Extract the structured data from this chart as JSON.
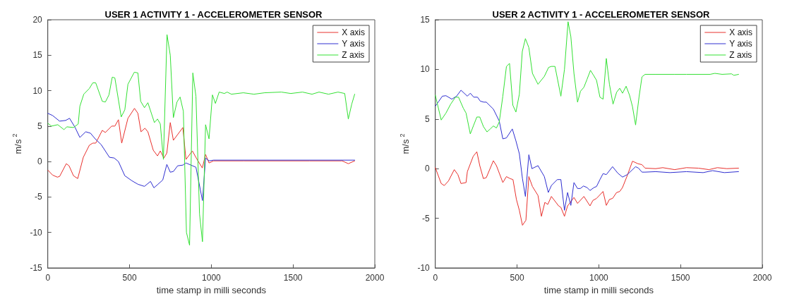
{
  "chart_data": [
    {
      "type": "line",
      "title": "USER 1 ACTIVITY 1 - ACCELEROMETER SENSOR",
      "xlabel": "time stamp in milli seconds",
      "ylabel": "m/s$^{2}$",
      "xlim": [
        0,
        2000
      ],
      "xticks": [
        0,
        500,
        1000,
        1500,
        2000
      ],
      "ylim": [
        -15,
        20
      ],
      "yticks": [
        -15,
        -10,
        -5,
        0,
        5,
        10,
        15,
        20
      ],
      "grid": false,
      "legend": "top right",
      "marker": "none",
      "line_style": "solid",
      "series": [
        {
          "name": "X axis",
          "color": "#e8302c",
          "x": [
            0,
            29,
            58,
            72,
            113,
            130,
            157,
            183,
            217,
            254,
            275,
            293,
            333,
            352,
            391,
            410,
            432,
            452,
            490,
            530,
            551,
            570,
            594,
            612,
            645,
            671,
            688,
            710,
            728,
            749,
            768,
            826,
            845,
            884,
            913,
            945,
            965,
            986,
            1014,
            1200,
            1400,
            1600,
            1800,
            1838,
            1877
          ],
          "values": [
            -1.2,
            -1.9,
            -2.2,
            -2.1,
            -0.3,
            -0.6,
            -2.0,
            -2.4,
            0.6,
            2.3,
            2.6,
            2.6,
            4.4,
            4.1,
            5.0,
            5.0,
            5.9,
            2.6,
            6.1,
            7.5,
            6.8,
            4.2,
            4.7,
            4.2,
            1.6,
            0.8,
            1.5,
            0.5,
            1.2,
            5.5,
            3.0,
            4.8,
            0.3,
            1.5,
            0.3,
            -0.9,
            1.0,
            -0.2,
            0.1,
            0.1,
            0.1,
            0.1,
            0.1,
            -0.3,
            0.1
          ]
        },
        {
          "name": "Y axis",
          "color": "#2e2ed0",
          "x": [
            0,
            29,
            72,
            109,
            133,
            167,
            196,
            232,
            261,
            290,
            326,
            377,
            406,
            432,
            471,
            514,
            551,
            591,
            628,
            649,
            674,
            703,
            728,
            749,
            768,
            794,
            826,
            845,
            906,
            946,
            965,
            986,
            1014,
            1877
          ],
          "values": [
            6.8,
            6.5,
            5.7,
            5.8,
            6.1,
            4.8,
            3.4,
            4.2,
            4.0,
            3.2,
            2.4,
            0.6,
            0.5,
            0.0,
            -2.0,
            -2.7,
            -3.2,
            -3.5,
            -2.8,
            -3.7,
            -3.2,
            -2.6,
            -0.4,
            -1.5,
            -1.4,
            -0.6,
            -0.5,
            -0.2,
            -0.8,
            -5.5,
            0.5,
            0.1,
            0.2,
            0.2
          ]
        },
        {
          "name": "Z axis",
          "color": "#33e033",
          "x": [
            0,
            22,
            61,
            99,
            116,
            157,
            186,
            196,
            220,
            254,
            275,
            293,
            333,
            352,
            374,
            394,
            410,
            449,
            471,
            490,
            529,
            551,
            568,
            591,
            612,
            652,
            671,
            688,
            707,
            729,
            749,
            768,
            790,
            809,
            829,
            848,
            867,
            887,
            906,
            928,
            946,
            965,
            986,
            1007,
            1025,
            1048,
            1080,
            1097,
            1123,
            1196,
            1261,
            1326,
            1428,
            1486,
            1558,
            1616,
            1659,
            1717,
            1775,
            1816,
            1838,
            1859,
            1877
          ],
          "values": [
            5.4,
            5.0,
            5.2,
            4.5,
            4.9,
            4.8,
            5.3,
            7.8,
            9.5,
            10.3,
            11.1,
            11.1,
            8.5,
            8.4,
            9.4,
            11.9,
            11.8,
            6.3,
            7.3,
            10.9,
            12.6,
            12.5,
            8.5,
            7.6,
            8.3,
            5.5,
            6.0,
            5.3,
            0.3,
            17.9,
            15.0,
            6.2,
            8.4,
            9.1,
            7.1,
            -10.0,
            -11.8,
            12.5,
            9.2,
            -7.4,
            -11.3,
            5.2,
            3.2,
            9.4,
            8.2,
            9.8,
            9.6,
            9.8,
            9.5,
            9.7,
            9.5,
            9.7,
            9.8,
            9.6,
            9.8,
            9.5,
            9.8,
            9.5,
            9.8,
            9.6,
            6.0,
            8.1,
            9.5
          ]
        }
      ]
    },
    {
      "type": "line",
      "title": "USER 2 ACTIVITY 1 - ACCELEROMETER SENSOR",
      "xlabel": "time stamp in milli seconds",
      "ylabel": "m/s$^{2}$",
      "xlim": [
        0,
        2000
      ],
      "xticks": [
        0,
        500,
        1000,
        1500,
        2000
      ],
      "ylim": [
        -10,
        15
      ],
      "yticks": [
        -10,
        -5,
        0,
        5,
        10,
        15
      ],
      "grid": false,
      "legend": "top right",
      "marker": "none",
      "line_style": "solid",
      "series": [
        {
          "name": "X axis",
          "color": "#e8302c",
          "x": [
            0,
            36,
            55,
            80,
            116,
            138,
            157,
            188,
            196,
            232,
            254,
            272,
            294,
            312,
            355,
            374,
            413,
            435,
            457,
            475,
            496,
            514,
            533,
            554,
            572,
            594,
            628,
            649,
            670,
            688,
            710,
            754,
            768,
            790,
            809,
            826,
            848,
            870,
            909,
            946,
            964,
            986,
            1026,
            1046,
            1065,
            1084,
            1109,
            1128,
            1145,
            1174,
            1206,
            1239,
            1264,
            1283,
            1348,
            1391,
            1464,
            1536,
            1609,
            1674,
            1725,
            1783,
            1855
          ],
          "values": [
            0.1,
            -1.5,
            -1.7,
            -1.25,
            -0.1,
            -0.6,
            -1.5,
            -1.4,
            -0.3,
            1.25,
            1.7,
            0.3,
            -1.0,
            -0.9,
            0.8,
            0.3,
            -1.4,
            -0.8,
            -1.0,
            -1.1,
            -3.1,
            -4.2,
            -5.7,
            -5.2,
            -0.8,
            -1.8,
            -2.7,
            -4.8,
            -3.4,
            -3.6,
            -2.8,
            -3.75,
            -3.9,
            -4.8,
            -3.75,
            -3.4,
            -2.9,
            -3.5,
            -2.8,
            -3.75,
            -3.2,
            -3.0,
            -2.3,
            -3.7,
            -3.1,
            -3.0,
            -2.4,
            -2.3,
            -1.9,
            -0.7,
            0.75,
            0.5,
            0.4,
            0.05,
            0.0,
            0.1,
            -0.1,
            0.1,
            0.05,
            -0.1,
            0.1,
            0.0,
            0.05
          ]
        },
        {
          "name": "Y axis",
          "color": "#2e2ed0",
          "x": [
            0,
            22,
            43,
            65,
            101,
            130,
            157,
            196,
            214,
            235,
            258,
            275,
            297,
            312,
            355,
            391,
            413,
            435,
            471,
            493,
            514,
            533,
            551,
            572,
            591,
            628,
            667,
            691,
            710,
            746,
            768,
            790,
            809,
            829,
            848,
            870,
            887,
            906,
            928,
            946,
            971,
            986,
            1007,
            1026,
            1046,
            1084,
            1116,
            1145,
            1174,
            1225,
            1243,
            1264,
            1283,
            1348,
            1435,
            1536,
            1638,
            1696,
            1768,
            1855
          ],
          "values": [
            6.3,
            6.8,
            7.3,
            7.35,
            7.0,
            7.3,
            7.9,
            7.3,
            7.6,
            7.2,
            7.2,
            6.8,
            6.7,
            6.7,
            6.0,
            4.8,
            3.0,
            3.1,
            4.0,
            2.8,
            1.5,
            -1.0,
            -2.8,
            1.4,
            0.0,
            0.3,
            -0.8,
            -2.4,
            -1.7,
            -1.1,
            -1.1,
            -4.2,
            -2.4,
            -3.7,
            -1.4,
            -2.0,
            -2.0,
            -1.75,
            -1.9,
            -2.2,
            -1.9,
            -1.8,
            -1.1,
            -0.5,
            -0.6,
            0.2,
            -0.45,
            -0.85,
            -0.6,
            0.2,
            0.05,
            -0.35,
            -0.35,
            -0.3,
            -0.4,
            -0.3,
            -0.4,
            -0.2,
            -0.4,
            -0.3
          ]
        },
        {
          "name": "Z axis",
          "color": "#33e033",
          "x": [
            0,
            36,
            65,
            94,
            123,
            142,
            171,
            188,
            214,
            235,
            254,
            272,
            294,
            316,
            336,
            355,
            374,
            391,
            413,
            435,
            454,
            474,
            493,
            514,
            532,
            551,
            572,
            594,
            628,
            667,
            693,
            710,
            732,
            768,
            790,
            812,
            829,
            848,
            870,
            888,
            909,
            928,
            949,
            968,
            986,
            1007,
            1026,
            1046,
            1065,
            1087,
            1109,
            1128,
            1145,
            1167,
            1188,
            1206,
            1225,
            1246,
            1264,
            1283,
            1348,
            1464,
            1536,
            1681,
            1710,
            1754,
            1812,
            1826,
            1855
          ],
          "values": [
            7.4,
            4.9,
            5.6,
            6.5,
            7.2,
            7.2,
            6.1,
            5.6,
            3.5,
            4.4,
            5.2,
            5.2,
            4.25,
            3.7,
            4.0,
            4.3,
            4.1,
            4.7,
            7.3,
            10.3,
            10.6,
            6.4,
            5.7,
            7.5,
            11.8,
            13.1,
            12.2,
            9.6,
            8.5,
            9.3,
            10.2,
            10.3,
            10.3,
            7.3,
            10.0,
            14.8,
            13.3,
            9.6,
            6.7,
            7.8,
            8.2,
            9.0,
            9.9,
            9.4,
            8.9,
            7.2,
            7.0,
            11.1,
            8.5,
            6.5,
            7.7,
            8.1,
            7.6,
            8.3,
            7.4,
            6.25,
            4.4,
            7.2,
            9.25,
            9.5,
            9.5,
            9.5,
            9.5,
            9.5,
            9.6,
            9.5,
            9.55,
            9.4,
            9.5
          ]
        }
      ]
    }
  ]
}
